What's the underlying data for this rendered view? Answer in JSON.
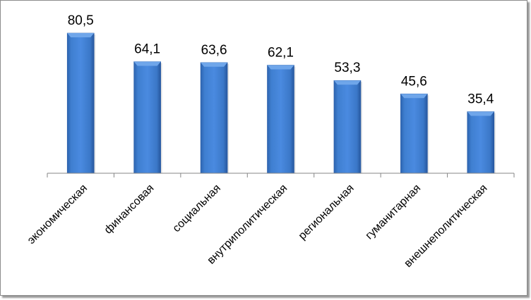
{
  "chart_data": {
    "type": "bar",
    "title": "",
    "xlabel": "",
    "ylabel": "",
    "categories": [
      "экономическая",
      "финансовая",
      "социальная",
      "внутриполитическая",
      "региональная",
      "гуманитарная",
      "внешнеполитическая"
    ],
    "values": [
      80.5,
      64.1,
      63.6,
      62.1,
      53.3,
      45.6,
      35.4
    ],
    "value_labels": [
      "80,5",
      "64,1",
      "63,6",
      "62,1",
      "53,3",
      "45,6",
      "35,4"
    ],
    "ylim": [
      0,
      80.5
    ],
    "grid": false,
    "legend": "none",
    "colors": {
      "bar": "#3f7fd0",
      "bar_dark": "#2a5ea8",
      "bar_light": "#6fa6ea",
      "axis": "#868686"
    }
  }
}
